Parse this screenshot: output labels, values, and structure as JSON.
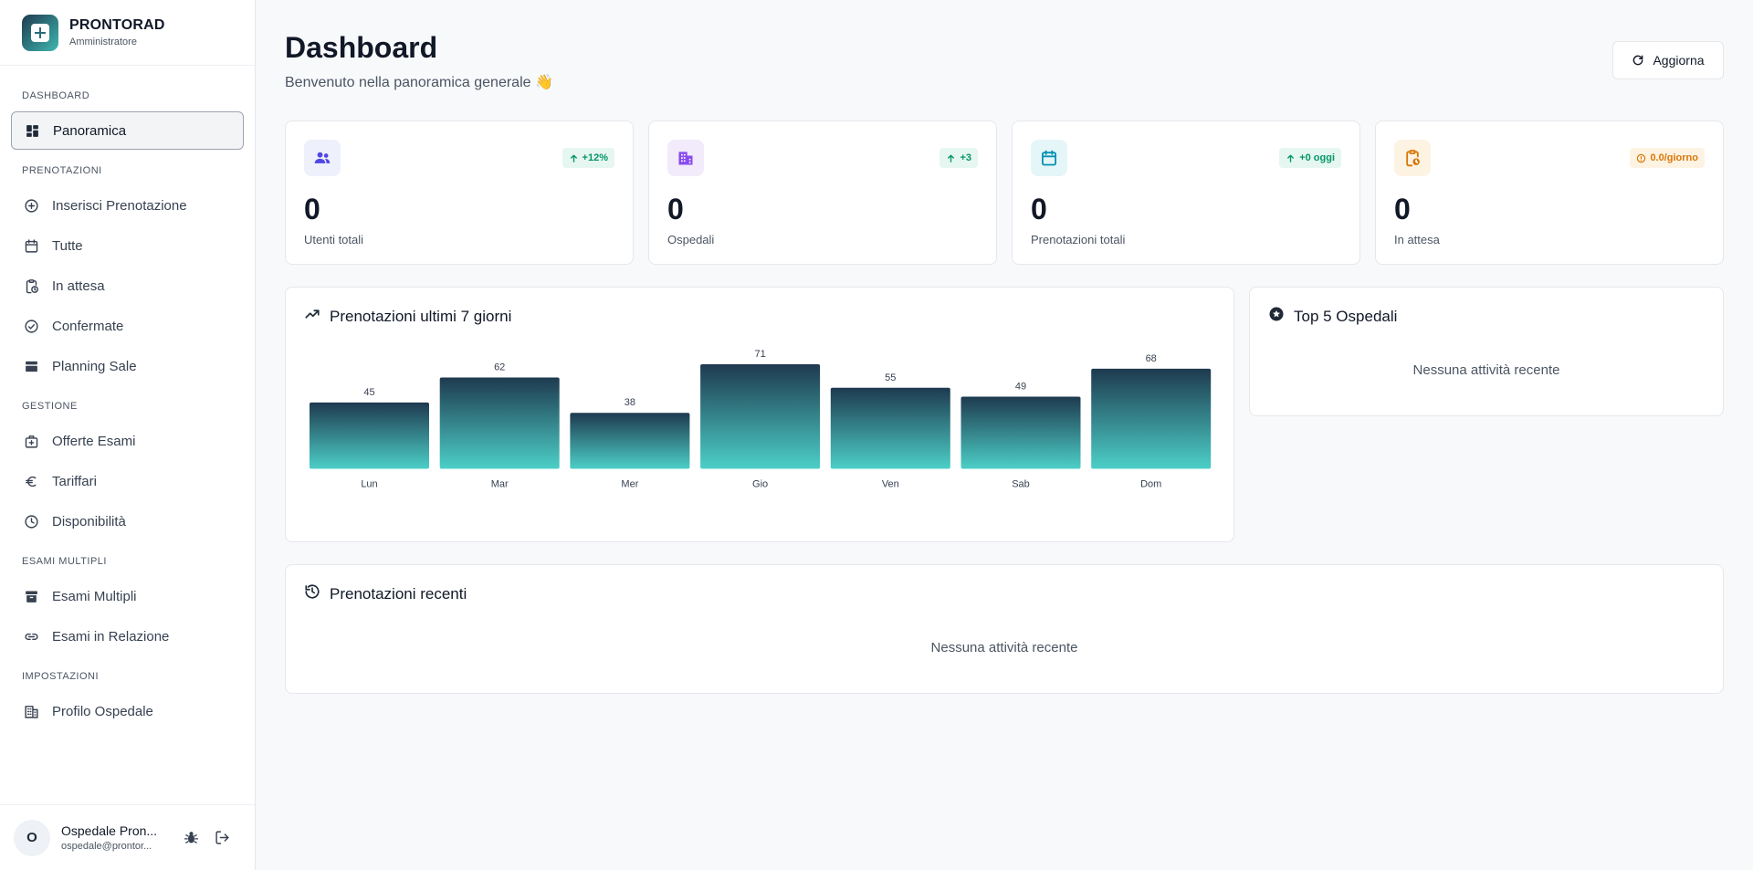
{
  "brand": {
    "name": "PRONTORAD",
    "role": "Amministratore"
  },
  "sidebar": {
    "sections": [
      {
        "title": "DASHBOARD",
        "items": [
          {
            "label": "Panoramica",
            "icon": "grid-icon",
            "active": true
          }
        ]
      },
      {
        "title": "PRENOTAZIONI",
        "items": [
          {
            "label": "Inserisci Prenotazione",
            "icon": "plus-circle-icon"
          },
          {
            "label": "Tutte",
            "icon": "calendar-icon"
          },
          {
            "label": "In attesa",
            "icon": "clipboard-clock-icon"
          },
          {
            "label": "Confermate",
            "icon": "check-circle-icon"
          },
          {
            "label": "Planning Sale",
            "icon": "layers-icon"
          }
        ]
      },
      {
        "title": "GESTIONE",
        "items": [
          {
            "label": "Offerte Esami",
            "icon": "medical-bag-icon"
          },
          {
            "label": "Tariffari",
            "icon": "euro-icon"
          },
          {
            "label": "Disponibilità",
            "icon": "clock-icon"
          }
        ]
      },
      {
        "title": "ESAMI MULTIPLI",
        "items": [
          {
            "label": "Esami Multipli",
            "icon": "archive-icon"
          },
          {
            "label": "Esami in Relazione",
            "icon": "link-icon"
          }
        ]
      },
      {
        "title": "IMPOSTAZIONI",
        "items": [
          {
            "label": "Profilo Ospedale",
            "icon": "building-icon"
          }
        ]
      }
    ]
  },
  "user": {
    "initial": "O",
    "name": "Ospedale Pron...",
    "email": "ospedale@prontor..."
  },
  "header": {
    "title": "Dashboard",
    "subtitle": "Benvenuto nella panoramica generale 👋",
    "refresh_label": "Aggiorna"
  },
  "stats": [
    {
      "value": "0",
      "label": "Utenti totali",
      "badge": "+12%",
      "icon": "users-icon",
      "accent": "#4f46e5",
      "icon_bg": "#eef0fb",
      "badge_bg": "#e6f6f0",
      "badge_color": "#059669",
      "badge_icon": "arrow-up-icon"
    },
    {
      "value": "0",
      "label": "Ospedali",
      "badge": "+3",
      "icon": "building-icon",
      "accent": "#7c3aed",
      "icon_bg": "#f1ebfb",
      "badge_bg": "#e6f6f0",
      "badge_color": "#059669",
      "badge_icon": "arrow-up-icon"
    },
    {
      "value": "0",
      "label": "Prenotazioni totali",
      "badge": "+0 oggi",
      "icon": "calendar-icon",
      "accent": "#0891b2",
      "icon_bg": "#e5f6f9",
      "badge_bg": "#e6f6f0",
      "badge_color": "#059669",
      "badge_icon": "arrow-up-icon"
    },
    {
      "value": "0",
      "label": "In attesa",
      "badge": "0.0/giorno",
      "icon": "clipboard-clock-icon",
      "accent": "#d97706",
      "icon_bg": "#fdf3e3",
      "badge_bg": "#fdf3e3",
      "badge_color": "#d97706",
      "badge_icon": "alert-circle-icon"
    }
  ],
  "chart_panel": {
    "title": "Prenotazioni ultimi 7 giorni",
    "icon": "trending-up-icon"
  },
  "chart_data": {
    "type": "bar",
    "categories": [
      "Lun",
      "Mar",
      "Mer",
      "Gio",
      "Ven",
      "Sab",
      "Dom"
    ],
    "values": [
      45,
      62,
      38,
      71,
      55,
      49,
      68
    ],
    "gradient": [
      "#1e3a4f",
      "#4ccfc7"
    ]
  },
  "top_panel": {
    "title": "Top 5 Ospedali",
    "icon": "star-badge-icon",
    "empty": "Nessuna attività recente"
  },
  "recent_panel": {
    "title": "Prenotazioni recenti",
    "icon": "history-icon",
    "empty": "Nessuna attività recente"
  }
}
